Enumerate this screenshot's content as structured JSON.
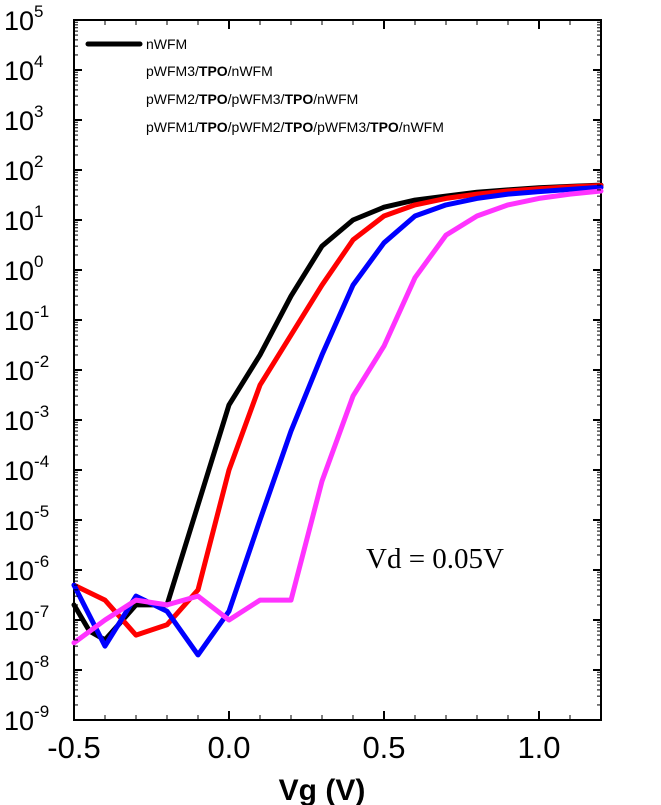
{
  "chart_data": {
    "type": "line",
    "title": "",
    "xlabel": "Vg (V)",
    "ylabel": "",
    "xlim": [
      -0.5,
      1.2
    ],
    "ylim": [
      1e-09,
      100000.0
    ],
    "y_scale": "log",
    "x_ticks": [
      "-0.5",
      "0.0",
      "0.5",
      "1.0"
    ],
    "x_tick_values": [
      -0.5,
      0.0,
      0.5,
      1.0
    ],
    "y_ticks": [
      {
        "base": "10",
        "exp": "5",
        "value": 5
      },
      {
        "base": "10",
        "exp": "4",
        "value": 4
      },
      {
        "base": "10",
        "exp": "3",
        "value": 3
      },
      {
        "base": "10",
        "exp": "2",
        "value": 2
      },
      {
        "base": "10",
        "exp": "1",
        "value": 1
      },
      {
        "base": "10",
        "exp": "0",
        "value": 0
      },
      {
        "base": "10",
        "exp": "-1",
        "value": -1
      },
      {
        "base": "10",
        "exp": "-2",
        "value": -2
      },
      {
        "base": "10",
        "exp": "-3",
        "value": -3
      },
      {
        "base": "10",
        "exp": "-4",
        "value": -4
      },
      {
        "base": "10",
        "exp": "-5",
        "value": -5
      },
      {
        "base": "10",
        "exp": "-6",
        "value": -6
      },
      {
        "base": "10",
        "exp": "-7",
        "value": -7
      },
      {
        "base": "10",
        "exp": "-8",
        "value": -8
      },
      {
        "base": "10",
        "exp": "-9",
        "value": -9
      }
    ],
    "legend_position": "top-left",
    "annotation": "Vd = 0.05V",
    "series": [
      {
        "name": "nWFM",
        "name_parts": [
          {
            "t": "nWFM",
            "b": false
          }
        ],
        "color": "#000000",
        "x": [
          -0.5,
          -0.45,
          -0.4,
          -0.3,
          -0.2,
          -0.1,
          0.0,
          0.1,
          0.2,
          0.3,
          0.4,
          0.5,
          0.6,
          0.7,
          0.8,
          0.9,
          1.0,
          1.1,
          1.2
        ],
        "y": [
          2e-07,
          6e-08,
          4e-08,
          2e-07,
          2e-07,
          2e-05,
          0.002,
          0.02,
          0.3,
          3,
          10,
          18,
          25,
          30,
          36,
          40,
          44,
          47,
          50
        ]
      },
      {
        "name": "pWFM3/TPO/nWFM",
        "name_parts": [
          {
            "t": "pWFM3/",
            "b": false
          },
          {
            "t": "TPO",
            "b": true
          },
          {
            "t": "/nWFM",
            "b": false
          }
        ],
        "color": "#ff0000",
        "x": [
          -0.5,
          -0.4,
          -0.3,
          -0.2,
          -0.1,
          0.0,
          0.1,
          0.2,
          0.3,
          0.4,
          0.5,
          0.6,
          0.7,
          0.8,
          0.9,
          1.0,
          1.1,
          1.2
        ],
        "y": [
          5e-07,
          2.5e-07,
          5e-08,
          8e-08,
          4e-07,
          0.0001,
          0.005,
          0.05,
          0.5,
          4,
          12,
          20,
          27,
          33,
          38,
          42,
          46,
          49
        ]
      },
      {
        "name": "pWFM2/TPO/pWFM3/TPO/nWFM",
        "name_parts": [
          {
            "t": "pWFM2/",
            "b": false
          },
          {
            "t": "TPO",
            "b": true
          },
          {
            "t": "/pWFM3/",
            "b": false
          },
          {
            "t": "TPO",
            "b": true
          },
          {
            "t": "/nWFM",
            "b": false
          }
        ],
        "color": "#0000ff",
        "x": [
          -0.5,
          -0.4,
          -0.3,
          -0.2,
          -0.1,
          0.0,
          0.1,
          0.2,
          0.3,
          0.4,
          0.5,
          0.6,
          0.7,
          0.8,
          0.9,
          1.0,
          1.1,
          1.2
        ],
        "y": [
          5e-07,
          3e-08,
          3e-07,
          1.5e-07,
          2e-08,
          1.5e-07,
          1e-05,
          0.0006,
          0.02,
          0.5,
          3.5,
          12,
          20,
          27,
          33,
          37,
          41,
          45
        ]
      },
      {
        "name": "pWFM1/TPO/pWFM2/TPO/pWFM3/TPO/nWFM",
        "name_parts": [
          {
            "t": "pWFM1/",
            "b": false
          },
          {
            "t": "TPO",
            "b": true
          },
          {
            "t": "/pWFM2/",
            "b": false
          },
          {
            "t": "TPO",
            "b": true
          },
          {
            "t": "/pWFM3/",
            "b": false
          },
          {
            "t": "TPO",
            "b": true
          },
          {
            "t": "/nWFM",
            "b": false
          }
        ],
        "color": "#ff33ff",
        "x": [
          -0.5,
          -0.4,
          -0.3,
          -0.2,
          -0.1,
          0.0,
          0.1,
          0.2,
          0.3,
          0.4,
          0.5,
          0.6,
          0.7,
          0.8,
          0.9,
          1.0,
          1.1,
          1.2
        ],
        "y": [
          3.5e-08,
          1e-07,
          2.5e-07,
          2e-07,
          3e-07,
          1e-07,
          2.5e-07,
          2.5e-07,
          6e-05,
          0.003,
          0.03,
          0.7,
          5,
          12,
          20,
          27,
          33,
          38
        ]
      }
    ]
  }
}
